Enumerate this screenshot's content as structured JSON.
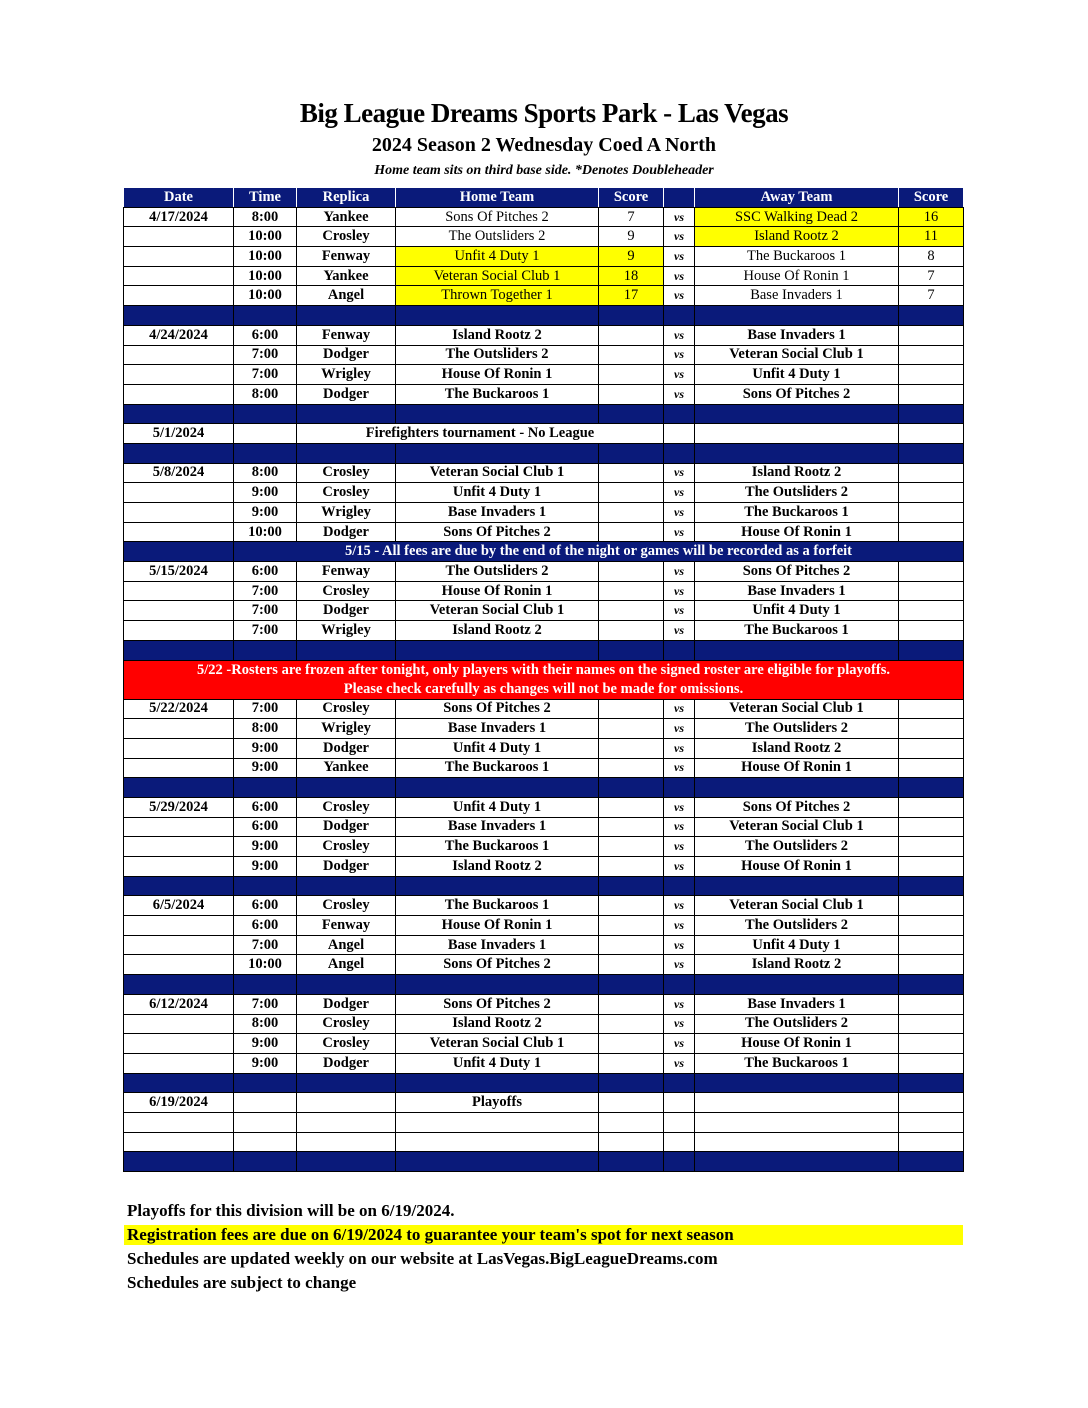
{
  "header": {
    "title": "Big League Dreams Sports Park - Las Vegas",
    "subtitle": "2024 Season 2 Wednesday Coed A North",
    "note": "Home team sits on third base side.  *Denotes Doubleheader"
  },
  "columns": [
    "Date",
    "Time",
    "Replica",
    "Home Team",
    "Score",
    "",
    "Away Team",
    "Score"
  ],
  "colors": {
    "header_bg": "#0a1a7a",
    "highlight": "#ffff00",
    "alert": "#ff0000"
  },
  "rows": [
    {
      "type": "game",
      "date": "4/17/2024",
      "time": "8:00",
      "field": "Yankee",
      "home": "Sons Of Pitches 2",
      "hs": "7",
      "vs": "vs",
      "away": "SSC Walking Dead 2",
      "as": "16",
      "winner": "away",
      "light": true
    },
    {
      "type": "game",
      "date": "",
      "time": "10:00",
      "field": "Crosley",
      "home": "The Outsliders 2",
      "hs": "9",
      "vs": "vs",
      "away": "Island Rootz 2",
      "as": "11",
      "winner": "away",
      "light": true
    },
    {
      "type": "game",
      "date": "",
      "time": "10:00",
      "field": "Fenway",
      "home": "Unfit 4 Duty 1",
      "hs": "9",
      "vs": "vs",
      "away": "The Buckaroos 1",
      "as": "8",
      "winner": "home",
      "light": true
    },
    {
      "type": "game",
      "date": "",
      "time": "10:00",
      "field": "Yankee",
      "home": "Veteran Social Club 1",
      "hs": "18",
      "vs": "vs",
      "away": "House Of Ronin 1",
      "as": "7",
      "winner": "home",
      "light": true
    },
    {
      "type": "game",
      "date": "",
      "time": "10:00",
      "field": "Angel",
      "home": "Thrown Together 1",
      "hs": "17",
      "vs": "vs",
      "away": "Base Invaders 1",
      "as": "7",
      "winner": "home",
      "light": true
    },
    {
      "type": "sep"
    },
    {
      "type": "game",
      "date": "4/24/2024",
      "time": "6:00",
      "field": "Fenway",
      "home": "Island Rootz 2",
      "hs": "",
      "vs": "vs",
      "away": "Base Invaders 1",
      "as": ""
    },
    {
      "type": "game",
      "date": "",
      "time": "7:00",
      "field": "Dodger",
      "home": "The Outsliders 2",
      "hs": "",
      "vs": "vs",
      "away": "Veteran Social Club 1",
      "as": ""
    },
    {
      "type": "game",
      "date": "",
      "time": "7:00",
      "field": "Wrigley",
      "home": "House Of Ronin 1",
      "hs": "",
      "vs": "vs",
      "away": "Unfit 4 Duty 1",
      "as": ""
    },
    {
      "type": "game",
      "date": "",
      "time": "8:00",
      "field": "Dodger",
      "home": "The Buckaroos 1",
      "hs": "",
      "vs": "vs",
      "away": "Sons Of Pitches 2",
      "as": ""
    },
    {
      "type": "sep"
    },
    {
      "type": "event",
      "date": "5/1/2024",
      "text": "Firefighters tournament - No League"
    },
    {
      "type": "sep"
    },
    {
      "type": "game",
      "date": "5/8/2024",
      "time": "8:00",
      "field": "Crosley",
      "home": "Veteran Social Club 1",
      "hs": "",
      "vs": "vs",
      "away": "Island Rootz 2",
      "as": ""
    },
    {
      "type": "game",
      "date": "",
      "time": "9:00",
      "field": "Crosley",
      "home": "Unfit 4 Duty 1",
      "hs": "",
      "vs": "vs",
      "away": "The Outsliders 2",
      "as": ""
    },
    {
      "type": "game",
      "date": "",
      "time": "9:00",
      "field": "Wrigley",
      "home": "Base Invaders 1",
      "hs": "",
      "vs": "vs",
      "away": "The Buckaroos 1",
      "as": ""
    },
    {
      "type": "game",
      "date": "",
      "time": "10:00",
      "field": "Dodger",
      "home": "Sons Of Pitches 2",
      "hs": "",
      "vs": "vs",
      "away": "House Of Ronin 1",
      "as": ""
    },
    {
      "type": "notice",
      "text": "5/15 - All fees are due by the end of the night or games will be recorded as a forfeit"
    },
    {
      "type": "game",
      "date": "5/15/2024",
      "time": "6:00",
      "field": "Fenway",
      "home": "The Outsliders 2",
      "hs": "",
      "vs": "vs",
      "away": "Sons Of Pitches 2",
      "as": ""
    },
    {
      "type": "game",
      "date": "",
      "time": "7:00",
      "field": "Crosley",
      "home": "House Of Ronin 1",
      "hs": "",
      "vs": "vs",
      "away": "Base Invaders 1",
      "as": ""
    },
    {
      "type": "game",
      "date": "",
      "time": "7:00",
      "field": "Dodger",
      "home": "Veteran Social Club 1",
      "hs": "",
      "vs": "vs",
      "away": "Unfit 4 Duty 1",
      "as": ""
    },
    {
      "type": "game",
      "date": "",
      "time": "7:00",
      "field": "Wrigley",
      "home": "Island Rootz 2",
      "hs": "",
      "vs": "vs",
      "away": "The Buckaroos 1",
      "as": ""
    },
    {
      "type": "sep"
    },
    {
      "type": "alert",
      "text": "5/22 -Rosters are frozen after tonight, only players with their names on the signed roster are eligible for playoffs.",
      "text2": "Please check carefully as changes will not be made for omissions."
    },
    {
      "type": "game",
      "date": "5/22/2024",
      "time": "7:00",
      "field": "Crosley",
      "home": "Sons Of Pitches 2",
      "hs": "",
      "vs": "vs",
      "away": "Veteran Social Club 1",
      "as": ""
    },
    {
      "type": "game",
      "date": "",
      "time": "8:00",
      "field": "Wrigley",
      "home": "Base Invaders 1",
      "hs": "",
      "vs": "vs",
      "away": "The Outsliders 2",
      "as": ""
    },
    {
      "type": "game",
      "date": "",
      "time": "9:00",
      "field": "Dodger",
      "home": "Unfit 4 Duty 1",
      "hs": "",
      "vs": "vs",
      "away": "Island Rootz 2",
      "as": ""
    },
    {
      "type": "game",
      "date": "",
      "time": "9:00",
      "field": "Yankee",
      "home": "The Buckaroos 1",
      "hs": "",
      "vs": "vs",
      "away": "House Of Ronin 1",
      "as": ""
    },
    {
      "type": "sep"
    },
    {
      "type": "game",
      "date": "5/29/2024",
      "time": "6:00",
      "field": "Crosley",
      "home": "Unfit 4 Duty 1",
      "hs": "",
      "vs": "vs",
      "away": "Sons Of Pitches 2",
      "as": ""
    },
    {
      "type": "game",
      "date": "",
      "time": "6:00",
      "field": "Dodger",
      "home": "Base Invaders 1",
      "hs": "",
      "vs": "vs",
      "away": "Veteran Social Club 1",
      "as": ""
    },
    {
      "type": "game",
      "date": "",
      "time": "9:00",
      "field": "Crosley",
      "home": "The Buckaroos 1",
      "hs": "",
      "vs": "vs",
      "away": "The Outsliders 2",
      "as": ""
    },
    {
      "type": "game",
      "date": "",
      "time": "9:00",
      "field": "Dodger",
      "home": "Island Rootz 2",
      "hs": "",
      "vs": "vs",
      "away": "House Of Ronin 1",
      "as": ""
    },
    {
      "type": "sep"
    },
    {
      "type": "game",
      "date": "6/5/2024",
      "time": "6:00",
      "field": "Crosley",
      "home": "The Buckaroos 1",
      "hs": "",
      "vs": "vs",
      "away": "Veteran Social Club 1",
      "as": ""
    },
    {
      "type": "game",
      "date": "",
      "time": "6:00",
      "field": "Fenway",
      "home": "House Of Ronin 1",
      "hs": "",
      "vs": "vs",
      "away": "The Outsliders 2",
      "as": ""
    },
    {
      "type": "game",
      "date": "",
      "time": "7:00",
      "field": "Angel",
      "home": "Base Invaders 1",
      "hs": "",
      "vs": "vs",
      "away": "Unfit 4 Duty 1",
      "as": ""
    },
    {
      "type": "game",
      "date": "",
      "time": "10:00",
      "field": "Angel",
      "home": "Sons Of Pitches 2",
      "hs": "",
      "vs": "vs",
      "away": "Island Rootz 2",
      "as": ""
    },
    {
      "type": "sep"
    },
    {
      "type": "game",
      "date": "6/12/2024",
      "time": "7:00",
      "field": "Dodger",
      "home": "Sons Of Pitches 2",
      "hs": "",
      "vs": "vs",
      "away": "Base Invaders 1",
      "as": ""
    },
    {
      "type": "game",
      "date": "",
      "time": "8:00",
      "field": "Crosley",
      "home": "Island Rootz 2",
      "hs": "",
      "vs": "vs",
      "away": "The Outsliders 2",
      "as": ""
    },
    {
      "type": "game",
      "date": "",
      "time": "9:00",
      "field": "Crosley",
      "home": "Veteran Social Club 1",
      "hs": "",
      "vs": "vs",
      "away": "House Of Ronin 1",
      "as": ""
    },
    {
      "type": "game",
      "date": "",
      "time": "9:00",
      "field": "Dodger",
      "home": "Unfit 4 Duty 1",
      "hs": "",
      "vs": "vs",
      "away": "The Buckaroos 1",
      "as": ""
    },
    {
      "type": "sep"
    },
    {
      "type": "game",
      "date": "6/19/2024",
      "time": "",
      "field": "",
      "home": "Playoffs",
      "hs": "",
      "vs": "",
      "away": "",
      "as": ""
    },
    {
      "type": "game",
      "date": "",
      "time": "",
      "field": "",
      "home": "",
      "hs": "",
      "vs": "",
      "away": "",
      "as": ""
    },
    {
      "type": "game",
      "date": "",
      "time": "",
      "field": "",
      "home": "",
      "hs": "",
      "vs": "",
      "away": "",
      "as": ""
    },
    {
      "type": "sep"
    }
  ],
  "footer": [
    "Playoffs for this division will be on 6/19/2024.",
    "Registration fees are due on 6/19/2024 to guarantee your team's spot for next season",
    "Schedules are updated weekly on our website at LasVegas.BigLeagueDreams.com",
    "Schedules are subject to change"
  ]
}
